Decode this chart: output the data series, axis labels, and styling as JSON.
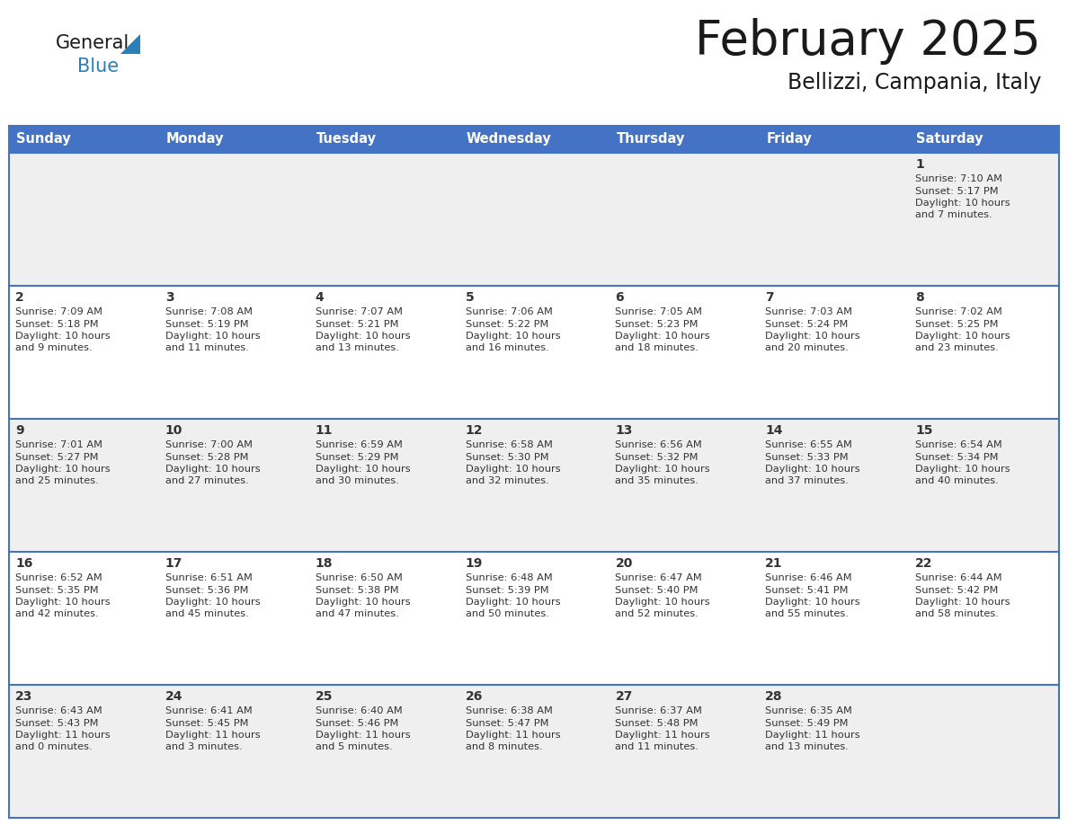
{
  "title": "February 2025",
  "subtitle": "Bellizzi, Campania, Italy",
  "header_bg": "#4472C4",
  "header_text_color": "#FFFFFF",
  "header_font_size": 10.5,
  "day_names": [
    "Sunday",
    "Monday",
    "Tuesday",
    "Wednesday",
    "Thursday",
    "Friday",
    "Saturday"
  ],
  "title_font_size": 38,
  "subtitle_font_size": 17,
  "cell_bg_odd": "#EFEFEF",
  "cell_bg_even": "#FFFFFF",
  "border_color": "#4472C4",
  "number_font_size": 10,
  "info_font_size": 8.2,
  "text_color": "#333333",
  "logo_general_color": "#1a1a1a",
  "logo_blue_color": "#2980B9",
  "logo_triangle_color": "#2980B9",
  "days": [
    {
      "day": 1,
      "col": 6,
      "row": 0,
      "sunrise": "7:10 AM",
      "sunset": "5:17 PM",
      "dl_hours": 10,
      "dl_minutes": 7
    },
    {
      "day": 2,
      "col": 0,
      "row": 1,
      "sunrise": "7:09 AM",
      "sunset": "5:18 PM",
      "dl_hours": 10,
      "dl_minutes": 9
    },
    {
      "day": 3,
      "col": 1,
      "row": 1,
      "sunrise": "7:08 AM",
      "sunset": "5:19 PM",
      "dl_hours": 10,
      "dl_minutes": 11
    },
    {
      "day": 4,
      "col": 2,
      "row": 1,
      "sunrise": "7:07 AM",
      "sunset": "5:21 PM",
      "dl_hours": 10,
      "dl_minutes": 13
    },
    {
      "day": 5,
      "col": 3,
      "row": 1,
      "sunrise": "7:06 AM",
      "sunset": "5:22 PM",
      "dl_hours": 10,
      "dl_minutes": 16
    },
    {
      "day": 6,
      "col": 4,
      "row": 1,
      "sunrise": "7:05 AM",
      "sunset": "5:23 PM",
      "dl_hours": 10,
      "dl_minutes": 18
    },
    {
      "day": 7,
      "col": 5,
      "row": 1,
      "sunrise": "7:03 AM",
      "sunset": "5:24 PM",
      "dl_hours": 10,
      "dl_minutes": 20
    },
    {
      "day": 8,
      "col": 6,
      "row": 1,
      "sunrise": "7:02 AM",
      "sunset": "5:25 PM",
      "dl_hours": 10,
      "dl_minutes": 23
    },
    {
      "day": 9,
      "col": 0,
      "row": 2,
      "sunrise": "7:01 AM",
      "sunset": "5:27 PM",
      "dl_hours": 10,
      "dl_minutes": 25
    },
    {
      "day": 10,
      "col": 1,
      "row": 2,
      "sunrise": "7:00 AM",
      "sunset": "5:28 PM",
      "dl_hours": 10,
      "dl_minutes": 27
    },
    {
      "day": 11,
      "col": 2,
      "row": 2,
      "sunrise": "6:59 AM",
      "sunset": "5:29 PM",
      "dl_hours": 10,
      "dl_minutes": 30
    },
    {
      "day": 12,
      "col": 3,
      "row": 2,
      "sunrise": "6:58 AM",
      "sunset": "5:30 PM",
      "dl_hours": 10,
      "dl_minutes": 32
    },
    {
      "day": 13,
      "col": 4,
      "row": 2,
      "sunrise": "6:56 AM",
      "sunset": "5:32 PM",
      "dl_hours": 10,
      "dl_minutes": 35
    },
    {
      "day": 14,
      "col": 5,
      "row": 2,
      "sunrise": "6:55 AM",
      "sunset": "5:33 PM",
      "dl_hours": 10,
      "dl_minutes": 37
    },
    {
      "day": 15,
      "col": 6,
      "row": 2,
      "sunrise": "6:54 AM",
      "sunset": "5:34 PM",
      "dl_hours": 10,
      "dl_minutes": 40
    },
    {
      "day": 16,
      "col": 0,
      "row": 3,
      "sunrise": "6:52 AM",
      "sunset": "5:35 PM",
      "dl_hours": 10,
      "dl_minutes": 42
    },
    {
      "day": 17,
      "col": 1,
      "row": 3,
      "sunrise": "6:51 AM",
      "sunset": "5:36 PM",
      "dl_hours": 10,
      "dl_minutes": 45
    },
    {
      "day": 18,
      "col": 2,
      "row": 3,
      "sunrise": "6:50 AM",
      "sunset": "5:38 PM",
      "dl_hours": 10,
      "dl_minutes": 47
    },
    {
      "day": 19,
      "col": 3,
      "row": 3,
      "sunrise": "6:48 AM",
      "sunset": "5:39 PM",
      "dl_hours": 10,
      "dl_minutes": 50
    },
    {
      "day": 20,
      "col": 4,
      "row": 3,
      "sunrise": "6:47 AM",
      "sunset": "5:40 PM",
      "dl_hours": 10,
      "dl_minutes": 52
    },
    {
      "day": 21,
      "col": 5,
      "row": 3,
      "sunrise": "6:46 AM",
      "sunset": "5:41 PM",
      "dl_hours": 10,
      "dl_minutes": 55
    },
    {
      "day": 22,
      "col": 6,
      "row": 3,
      "sunrise": "6:44 AM",
      "sunset": "5:42 PM",
      "dl_hours": 10,
      "dl_minutes": 58
    },
    {
      "day": 23,
      "col": 0,
      "row": 4,
      "sunrise": "6:43 AM",
      "sunset": "5:43 PM",
      "dl_hours": 11,
      "dl_minutes": 0
    },
    {
      "day": 24,
      "col": 1,
      "row": 4,
      "sunrise": "6:41 AM",
      "sunset": "5:45 PM",
      "dl_hours": 11,
      "dl_minutes": 3
    },
    {
      "day": 25,
      "col": 2,
      "row": 4,
      "sunrise": "6:40 AM",
      "sunset": "5:46 PM",
      "dl_hours": 11,
      "dl_minutes": 5
    },
    {
      "day": 26,
      "col": 3,
      "row": 4,
      "sunrise": "6:38 AM",
      "sunset": "5:47 PM",
      "dl_hours": 11,
      "dl_minutes": 8
    },
    {
      "day": 27,
      "col": 4,
      "row": 4,
      "sunrise": "6:37 AM",
      "sunset": "5:48 PM",
      "dl_hours": 11,
      "dl_minutes": 11
    },
    {
      "day": 28,
      "col": 5,
      "row": 4,
      "sunrise": "6:35 AM",
      "sunset": "5:49 PM",
      "dl_hours": 11,
      "dl_minutes": 13
    }
  ]
}
